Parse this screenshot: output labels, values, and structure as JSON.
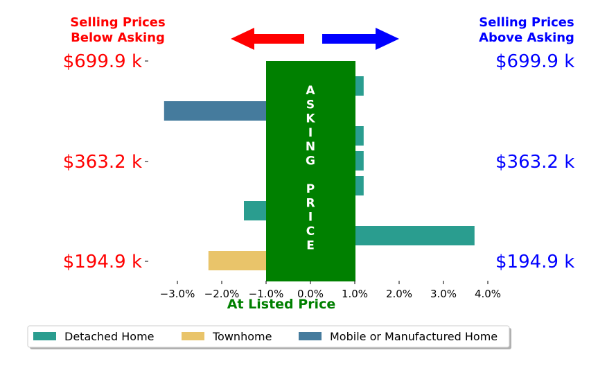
{
  "chart_data": {
    "type": "bar",
    "orientation": "horizontal",
    "xlabel": "At Listed Price",
    "xlim": [
      -3.4,
      4.0
    ],
    "x_ticks": [
      -3.0,
      -2.0,
      -1.0,
      0.0,
      1.0,
      2.0,
      3.0,
      4.0
    ],
    "x_tick_labels": [
      "−3.0%",
      "−2.0%",
      "−1.0%",
      "0.0%",
      "1.0%",
      "2.0%",
      "3.0%",
      "4.0%"
    ],
    "left_title": [
      "Selling Prices",
      "Below Asking"
    ],
    "right_title": [
      "Selling Prices",
      "Above Asking"
    ],
    "y_tick_labels": [
      "$699.9 k",
      "$363.2 k",
      "$194.9 k"
    ],
    "center_label": "ASKING PRICE",
    "center_label_lines": [
      "A",
      "S",
      "K",
      "I",
      "N",
      "G",
      "",
      "P",
      "R",
      "I",
      "C",
      "E"
    ],
    "bars": [
      {
        "category": "Detached Home",
        "value": 1.2
      },
      {
        "category": "Mobile or Manufactured Home",
        "value": -3.3
      },
      {
        "category": "Detached Home",
        "value": 1.2
      },
      {
        "category": "Detached Home",
        "value": 1.2
      },
      {
        "category": "Detached Home",
        "value": 1.2
      },
      {
        "category": "Detached Home",
        "value": -1.5
      },
      {
        "category": "Detached Home",
        "value": 3.7
      },
      {
        "category": "Townhome",
        "value": -2.3
      }
    ],
    "legend": [
      {
        "name": "Detached Home",
        "color": "#2a9d8f"
      },
      {
        "name": "Townhome",
        "color": "#e9c46a"
      },
      {
        "name": "Mobile or Manufactured Home",
        "color": "#457b9d"
      }
    ],
    "legend_placement": "bottom",
    "grid": false,
    "colors": {
      "below": "#ff0000",
      "above": "#0000ff",
      "asking_band": "#008000",
      "xlabel": "#008000"
    }
  }
}
